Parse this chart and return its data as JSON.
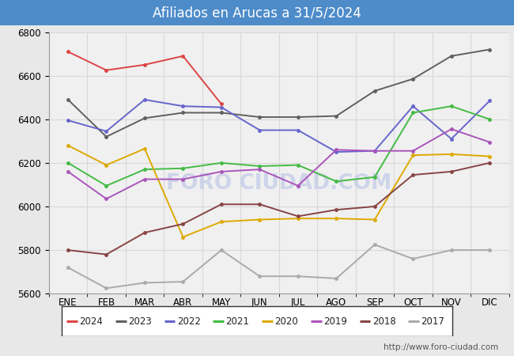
{
  "title": "Afiliados en Arucas a 31/5/2024",
  "title_bg_color": "#4d8bc9",
  "title_text_color": "#ffffff",
  "ylim": [
    5600,
    6800
  ],
  "yticks": [
    5600,
    5800,
    6000,
    6200,
    6400,
    6600,
    6800
  ],
  "months": [
    "ENE",
    "FEB",
    "MAR",
    "ABR",
    "MAY",
    "JUN",
    "JUL",
    "AGO",
    "SEP",
    "OCT",
    "NOV",
    "DIC"
  ],
  "series": {
    "2024": {
      "color": "#dd4444",
      "values": [
        6710,
        6625,
        6650,
        6690,
        6470,
        null,
        null,
        null,
        null,
        null,
        null,
        null
      ]
    },
    "2023": {
      "color": "#606060",
      "values": [
        6490,
        6320,
        6405,
        6430,
        6430,
        6410,
        6410,
        6415,
        6530,
        6585,
        6690,
        6720
      ]
    },
    "2022": {
      "color": "#6666cc",
      "values": [
        6395,
        6345,
        6490,
        6460,
        6455,
        6350,
        6350,
        6250,
        6255,
        6460,
        6310,
        6485
      ]
    },
    "2021": {
      "color": "#44bb44",
      "values": [
        6200,
        6095,
        6170,
        6175,
        6200,
        6185,
        6190,
        6115,
        6135,
        6430,
        6460,
        6400
      ]
    },
    "2020": {
      "color": "#ddaa00",
      "values": [
        6280,
        6190,
        6265,
        5860,
        5930,
        5940,
        5945,
        5945,
        5940,
        6235,
        6240,
        6230
      ]
    },
    "2019": {
      "color": "#aa55bb",
      "values": [
        6160,
        6035,
        6125,
        6125,
        6160,
        6170,
        6095,
        6260,
        6255,
        6255,
        6355,
        6295
      ]
    },
    "2018": {
      "color": "#884444",
      "values": [
        5800,
        5780,
        5880,
        5920,
        6010,
        6010,
        5955,
        5985,
        6000,
        6145,
        6160,
        6200
      ]
    },
    "2017": {
      "color": "#aaaaaa",
      "values": [
        5720,
        5625,
        5650,
        5655,
        5800,
        5680,
        5680,
        5670,
        5825,
        5760,
        5800,
        5800
      ]
    }
  },
  "watermark": "FORO CIUDAD.COM",
  "watermark_color": "#c8d0e8",
  "url_text": "http://www.foro-ciudad.com",
  "background_color": "#e8e8e8",
  "plot_bg_color": "#f0f0f0",
  "grid_color": "#d8d8d8",
  "legend_border_color": "#333333"
}
